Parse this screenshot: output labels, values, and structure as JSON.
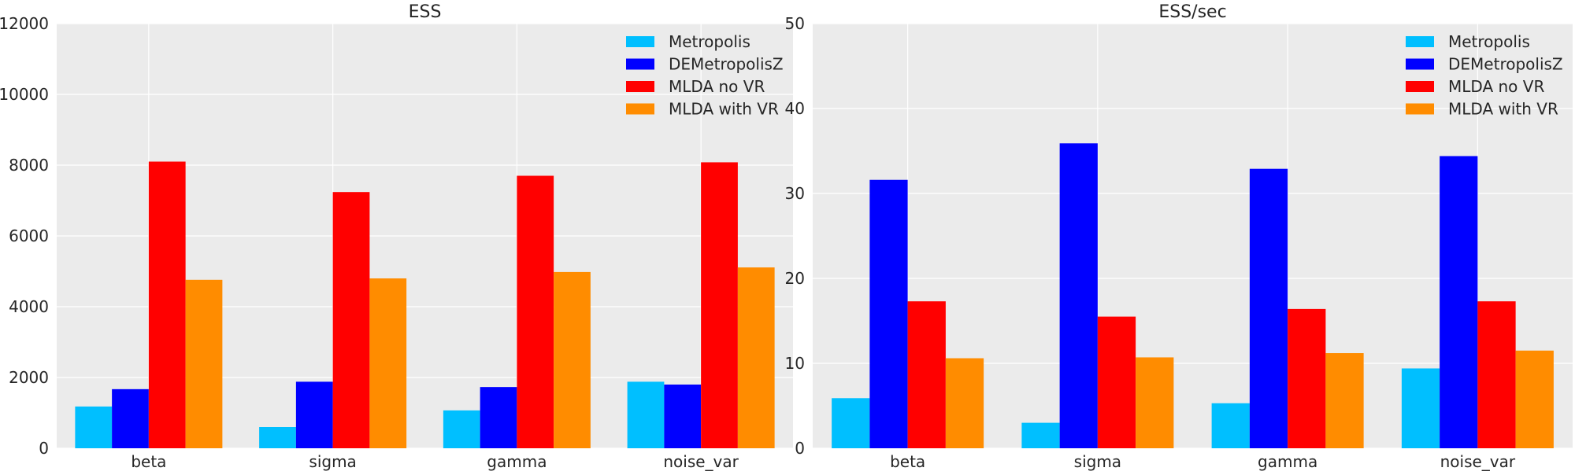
{
  "chart_data": [
    {
      "type": "bar",
      "title": "ESS",
      "xlabel": "",
      "ylabel": "",
      "categories": [
        "beta",
        "sigma",
        "gamma",
        "noise_var"
      ],
      "ylim": [
        0,
        12000
      ],
      "yticks": [
        0,
        2000,
        4000,
        6000,
        8000,
        10000,
        12000
      ],
      "grid": true,
      "legend_position": "top-right",
      "series": [
        {
          "name": "Metropolis",
          "color": "#00bfff",
          "values": [
            1180,
            600,
            1070,
            1880
          ]
        },
        {
          "name": "DEMetropolisZ",
          "color": "#0000ff",
          "values": [
            1670,
            1880,
            1730,
            1800
          ]
        },
        {
          "name": "MLDA no VR",
          "color": "#ff0000",
          "values": [
            8100,
            7240,
            7700,
            8080
          ]
        },
        {
          "name": "MLDA with VR",
          "color": "#ff8c00",
          "values": [
            4760,
            4800,
            4980,
            5110
          ]
        }
      ]
    },
    {
      "type": "bar",
      "title": "ESS/sec",
      "xlabel": "",
      "ylabel": "",
      "categories": [
        "beta",
        "sigma",
        "gamma",
        "noise_var"
      ],
      "ylim": [
        0,
        50
      ],
      "yticks": [
        0,
        10,
        20,
        30,
        40,
        50
      ],
      "grid": true,
      "legend_position": "top-right",
      "series": [
        {
          "name": "Metropolis",
          "color": "#00bfff",
          "values": [
            5.9,
            3.0,
            5.3,
            9.4
          ]
        },
        {
          "name": "DEMetropolisZ",
          "color": "#0000ff",
          "values": [
            31.6,
            35.9,
            32.9,
            34.4
          ]
        },
        {
          "name": "MLDA no VR",
          "color": "#ff0000",
          "values": [
            17.3,
            15.5,
            16.4,
            17.3
          ]
        },
        {
          "name": "MLDA with VR",
          "color": "#ff8c00",
          "values": [
            10.6,
            10.7,
            11.2,
            11.5
          ]
        }
      ]
    }
  ]
}
